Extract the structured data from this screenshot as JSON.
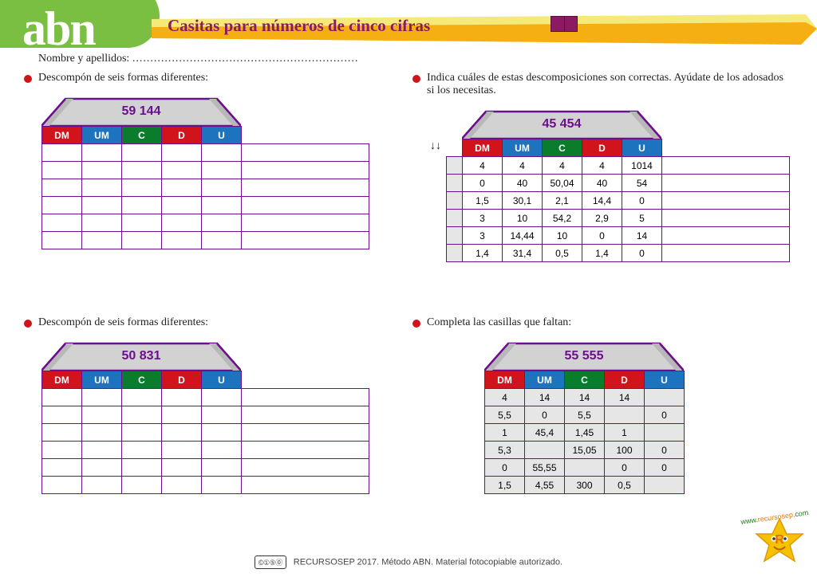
{
  "logo": "abn",
  "title": "Casitas para números de cinco cifras",
  "name_label": "Nombre y apellidos: ",
  "colors": {
    "purple": "#6b0f8e",
    "purple_dark": "#5a0c78",
    "green_logo": "#7bbf42",
    "title_color": "#8b1a63",
    "banner_yellow_top": "#f5e97a",
    "banner_orange_bot": "#f4a500",
    "red": "#d1131c",
    "blue": "#1e73be",
    "green": "#0a7d2c",
    "gray_cell": "#e6e6e6",
    "roof_fill_light": "#d2d2d2",
    "roof_fill_dark": "#b8b8b8"
  },
  "headers": [
    "DM",
    "UM",
    "C",
    "D",
    "U"
  ],
  "sections": {
    "topleft": {
      "label": "Descompón de seis formas diferentes:",
      "number": "59 144",
      "has_mark_col": false,
      "has_ext_col": true,
      "rows": [
        [
          "",
          "",
          "",
          "",
          "",
          ""
        ],
        [
          "",
          "",
          "",
          "",
          "",
          ""
        ],
        [
          "",
          "",
          "",
          "",
          "",
          ""
        ],
        [
          "",
          "",
          "",
          "",
          "",
          ""
        ],
        [
          "",
          "",
          "",
          "",
          "",
          ""
        ],
        [
          "",
          "",
          "",
          "",
          "",
          ""
        ]
      ]
    },
    "topright": {
      "label": "Indica cuáles de estas descomposiciones son correctas. Ayúdate de los adosados si los necesitas.",
      "number": "45 454",
      "has_mark_col": true,
      "has_ext_col": true,
      "arrows_sym": "↓↓",
      "rows": [
        [
          "",
          "4",
          "4",
          "4",
          "4",
          "1014",
          ""
        ],
        [
          "",
          "0",
          "40",
          "50,04",
          "40",
          "54",
          ""
        ],
        [
          "",
          "1,5",
          "30,1",
          "2,1",
          "14,4",
          "0",
          ""
        ],
        [
          "",
          "3",
          "10",
          "54,2",
          "2,9",
          "5",
          ""
        ],
        [
          "",
          "3",
          "14,44",
          "10",
          "0",
          "14",
          ""
        ],
        [
          "",
          "1,4",
          "31,4",
          "0,5",
          "1,4",
          "0",
          ""
        ]
      ]
    },
    "botleft": {
      "label": "Descompón de seis formas diferentes:",
      "number": "50 831",
      "has_mark_col": false,
      "has_ext_col": true,
      "rows": [
        [
          "",
          "",
          "",
          "",
          "",
          ""
        ],
        [
          "",
          "",
          "",
          "",
          "",
          ""
        ],
        [
          "",
          "",
          "",
          "",
          "",
          ""
        ],
        [
          "",
          "",
          "",
          "",
          "",
          ""
        ],
        [
          "",
          "",
          "",
          "",
          "",
          ""
        ],
        [
          "",
          "",
          "",
          "",
          "",
          ""
        ]
      ]
    },
    "botright": {
      "label": "Completa las casillas que faltan:",
      "number": "55 555",
      "has_mark_col": false,
      "has_ext_col": false,
      "gray_cells": true,
      "rows": [
        [
          "4",
          "14",
          "14",
          "14",
          ""
        ],
        [
          "5,5",
          "0",
          "5,5",
          "",
          "0"
        ],
        [
          "1",
          "45,4",
          "1,45",
          "1",
          ""
        ],
        [
          "5,3",
          "",
          "15,05",
          "100",
          "0"
        ],
        [
          "0",
          "55,55",
          "",
          "0",
          "0"
        ],
        [
          "1,5",
          "4,55",
          "300",
          "0,5",
          ""
        ]
      ]
    }
  },
  "footer": {
    "cc": "©①⑤⓪",
    "text": "RECURSOSEP 2017. Método ABN. Material fotocopiable autorizado."
  },
  "url": {
    "www": "www.",
    "mid": "recursosep",
    "com": ".com"
  }
}
